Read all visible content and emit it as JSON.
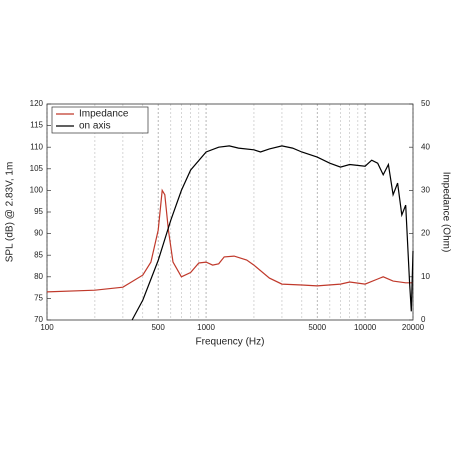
{
  "chart_data": {
    "type": "line",
    "x_label": "Frequency (Hz)",
    "y_label": "SPL (dB) @ 2.83V, 1m",
    "y2_label": "Impedance (Ohm)",
    "xscale": "log",
    "xlim": [
      100,
      20000
    ],
    "xticks": [
      100,
      500,
      1000,
      5000,
      10000,
      20000
    ],
    "xgrid_minor": [
      200,
      300,
      400,
      600,
      700,
      800,
      900,
      2000,
      3000,
      4000,
      6000,
      7000,
      8000,
      9000
    ],
    "ylim": [
      70,
      120
    ],
    "yticks": [
      70,
      75,
      80,
      85,
      90,
      95,
      100,
      105,
      110,
      115,
      120
    ],
    "y2lim": [
      0,
      50
    ],
    "y2ticks": [
      0,
      10,
      20,
      30,
      40,
      50
    ],
    "grid": true,
    "legend": "upper left",
    "series": [
      {
        "name": "Impedance",
        "color": "#c0392b",
        "axis": "y2",
        "x": [
          100,
          200,
          300,
          400,
          450,
          500,
          530,
          550,
          580,
          620,
          700,
          800,
          900,
          1000,
          1100,
          1200,
          1300,
          1500,
          1800,
          2000,
          2500,
          3000,
          4000,
          5000,
          7000,
          8000,
          10000,
          12000,
          13000,
          15000,
          18000,
          20000
        ],
        "values": [
          6.5,
          6.9,
          7.6,
          10.4,
          13.4,
          20.8,
          30,
          29,
          20.8,
          13.4,
          10,
          11,
          13.2,
          13.4,
          12.7,
          13,
          14.6,
          14.8,
          13.9,
          12.7,
          9.7,
          8.3,
          8.1,
          7.9,
          8.3,
          8.8,
          8.3,
          9.5,
          10,
          9,
          8.6,
          8.6
        ]
      },
      {
        "name": "on axis",
        "color": "#000000",
        "x": [
          343,
          400,
          500,
          600,
          700,
          800,
          1000,
          1200,
          1400,
          1600,
          2000,
          2200,
          2500,
          3000,
          3500,
          4000,
          5000,
          6000,
          7000,
          8000,
          10000,
          11000,
          12000,
          13000,
          14000,
          15000,
          16000,
          17000,
          18000,
          19000,
          19500,
          20000
        ],
        "values": [
          70,
          74.6,
          83.8,
          93.1,
          100,
          104.7,
          108.9,
          110,
          110.3,
          109.8,
          109.4,
          108.9,
          109.6,
          110.3,
          109.8,
          108.9,
          107.7,
          106.3,
          105.4,
          106,
          105.6,
          107,
          106.3,
          103.6,
          106,
          99,
          101.7,
          94.3,
          96.6,
          79,
          72,
          86
        ]
      }
    ]
  }
}
